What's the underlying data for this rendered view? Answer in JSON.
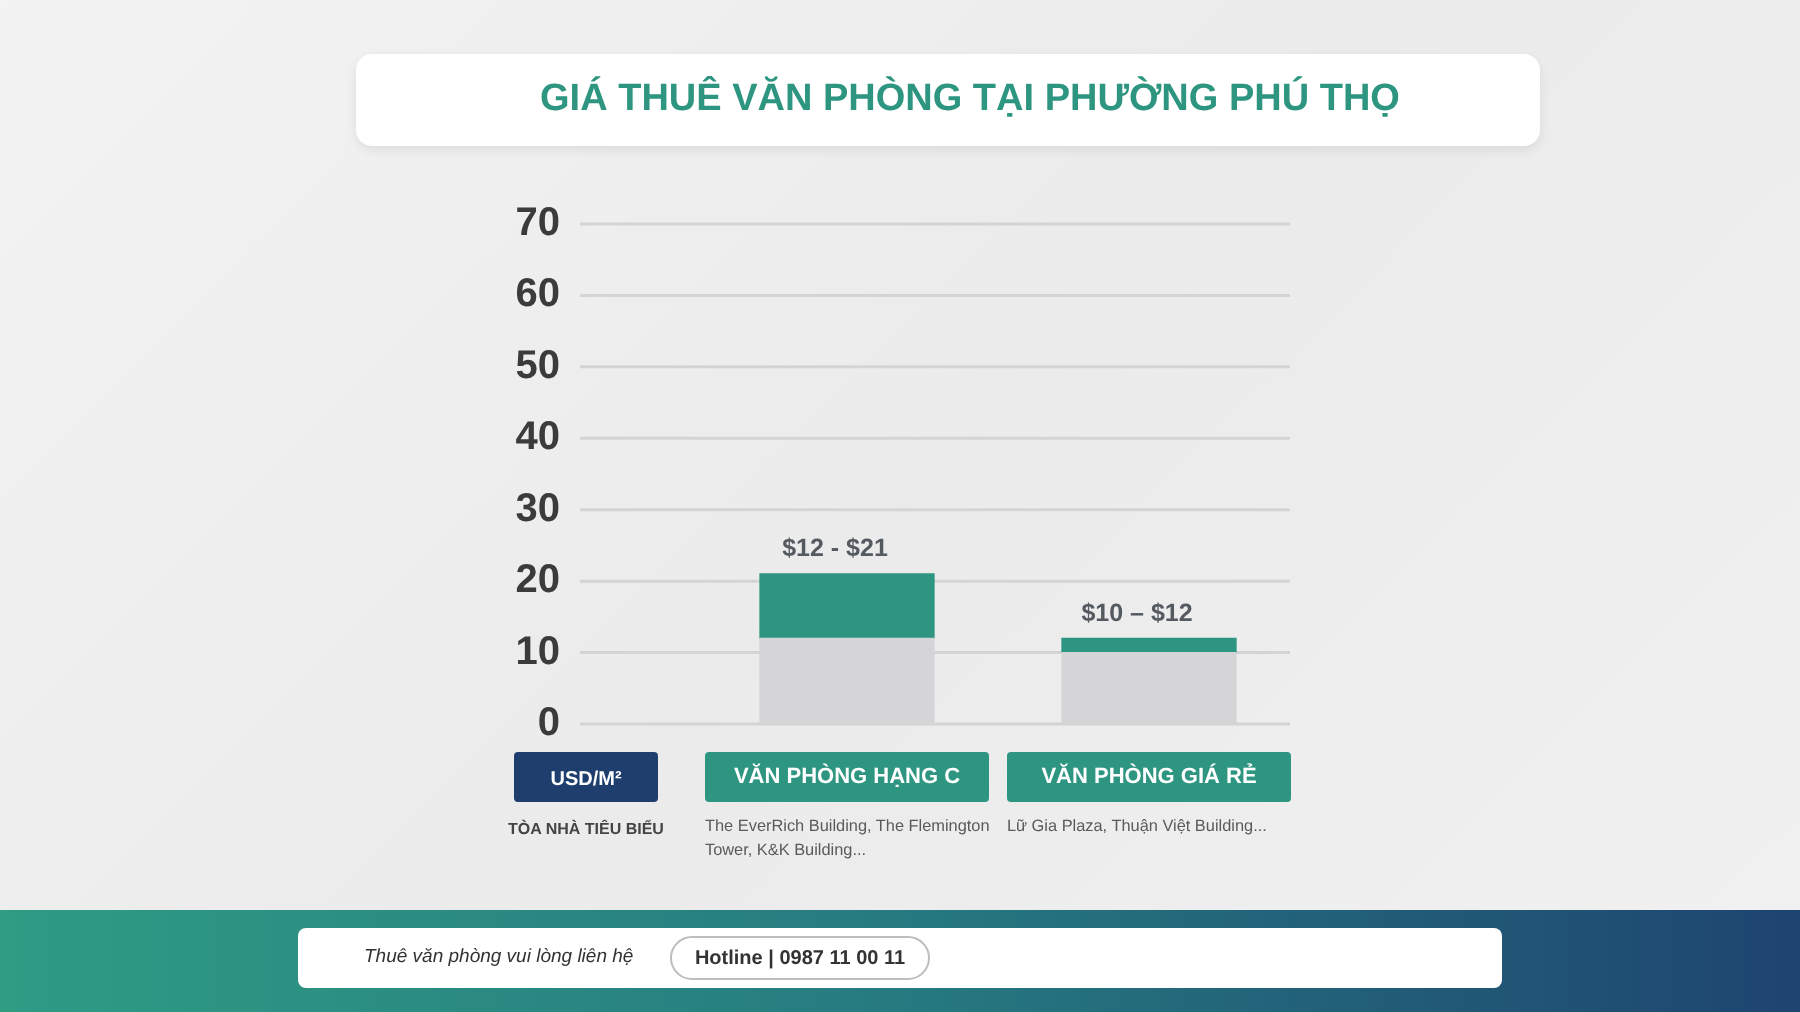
{
  "chart_data": {
    "type": "bar",
    "title": "GIÁ THUÊ VĂN PHÒNG TẠI PHƯỜNG PHÚ THỌ",
    "ylabel": "USD/M²",
    "categories": [
      "VĂN PHÒNG HẠNG C",
      "VĂN PHÒNG GIÁ RẺ"
    ],
    "stacked": true,
    "series": [
      {
        "color": "#d5d5d7",
        "values": [
          12,
          10
        ]
      },
      {
        "color": "#2e9680",
        "values": [
          9,
          2
        ]
      }
    ],
    "ylim": [
      0,
      70
    ],
    "yticks": [
      0,
      10,
      20,
      30,
      40,
      50,
      60,
      70
    ],
    "grid": "y",
    "annotations": [
      {
        "text": "$12 - $21",
        "x": "VĂN PHÒNG HẠNG C",
        "y": 21
      },
      {
        "text": "$10 – $12",
        "x": "VĂN PHÒNG GIÁ RẺ",
        "y": 12
      },
      "TÒA NHÀ TIÊU BIỂU",
      "The EverRich Building, The Flemington Tower, K&K Building...",
      "Lữ Gia Plaza, Thuận Việt Building...",
      "Thuê văn phòng vui lòng liên hệ",
      "Hotline | 0987 11 00 11"
    ]
  }
}
